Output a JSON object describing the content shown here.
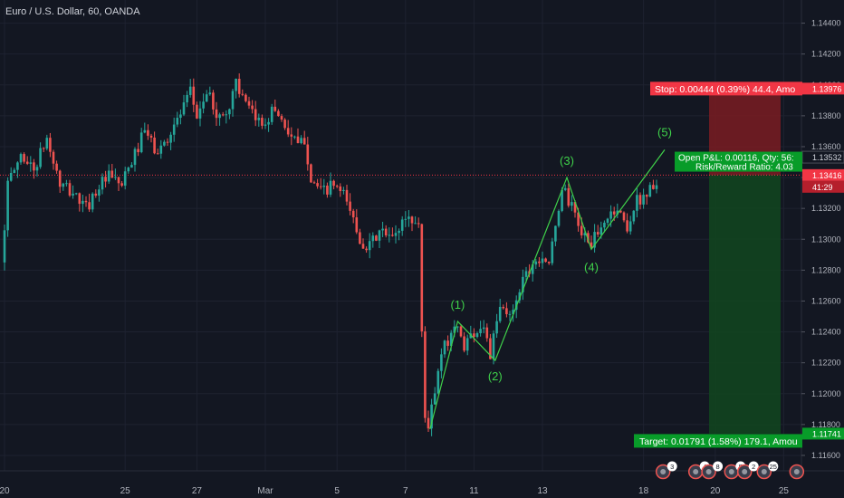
{
  "header": {
    "title": "Euro / U.S. Dollar, 60, OANDA"
  },
  "colors": {
    "background": "#131722",
    "grid": "#1e2230",
    "up": "#26a69a",
    "down": "#ef5350",
    "wave": "#3fd14a",
    "stop_zone": "#7a1c22",
    "target_zone": "#12461f",
    "price_line": "#f23645",
    "stop_label": "#f23645",
    "target_label": "#089c29",
    "axis_text": "#b2b5be"
  },
  "y_axis": {
    "min": 1.115,
    "max": 1.1455,
    "ticks": [
      "1.14400",
      "1.14200",
      "1.14000",
      "1.13800",
      "1.13600",
      "1.13400",
      "1.13200",
      "1.13000",
      "1.12800",
      "1.12600",
      "1.12400",
      "1.12200",
      "1.12000",
      "1.11800",
      "1.11600"
    ],
    "tick_values": [
      1.144,
      1.142,
      1.14,
      1.138,
      1.136,
      1.134,
      1.132,
      1.13,
      1.128,
      1.126,
      1.124,
      1.122,
      1.12,
      1.118,
      1.116
    ]
  },
  "x_axis": {
    "ticks": [
      {
        "label": "20",
        "bar": 0
      },
      {
        "label": "25",
        "bar": 37
      },
      {
        "label": "27",
        "bar": 59
      },
      {
        "label": "Mar",
        "bar": 80
      },
      {
        "label": "5",
        "bar": 102
      },
      {
        "label": "7",
        "bar": 123
      },
      {
        "label": "11",
        "bar": 144
      },
      {
        "label": "13",
        "bar": 165
      },
      {
        "label": "18",
        "bar": 196
      },
      {
        "label": "20",
        "bar": 218
      },
      {
        "label": "25",
        "bar": 239
      }
    ]
  },
  "position": {
    "entry": 1.13416,
    "stop": 1.13976,
    "target": 1.11741,
    "pnl_price": 1.13532,
    "stop_label": "Stop: 0.00444 (0.39%) 44.4, Amo",
    "target_label": "Target: 0.01791 (1.58%) 179.1, Amou",
    "pnl_line1": "Open P&L: 0.00116, Qty: 56:",
    "pnl_line2": "Risk/Reward Ratio: 4.03"
  },
  "price_tags": {
    "stop": "1.13976",
    "pnl": "1.13532",
    "current": "1.13416",
    "countdown": "41:29",
    "target": "1.11741"
  },
  "waves": [
    {
      "label": "(1)",
      "bar": 139.0,
      "price": 1.12468
    },
    {
      "label": "(2)",
      "bar": 150.5,
      "price": 1.12215
    },
    {
      "label": "(3)",
      "bar": 172.5,
      "price": 1.134
    },
    {
      "label": "(4)",
      "bar": 180.0,
      "price": 1.12935
    },
    {
      "label": "(5)",
      "bar": 202.5,
      "price": 1.1358
    }
  ],
  "wave_start": {
    "bar": 130.5,
    "price": 1.1177
  },
  "events": [
    {
      "label": "3",
      "bar": 202
    },
    {
      "label": "4",
      "bar": 212
    },
    {
      "label": "8",
      "bar": 216
    },
    {
      "label": "5",
      "bar": 223
    },
    {
      "label": "2",
      "bar": 227
    },
    {
      "label": "25",
      "bar": 233
    },
    {
      "label": "",
      "bar": 243
    }
  ],
  "chart_data": {
    "type": "candlestick",
    "anchors": [
      [
        0,
        1.1285
      ],
      [
        2,
        1.1335
      ],
      [
        6,
        1.1355
      ],
      [
        10,
        1.1345
      ],
      [
        14,
        1.1365
      ],
      [
        18,
        1.1335
      ],
      [
        22,
        1.133
      ],
      [
        26,
        1.132
      ],
      [
        30,
        1.1335
      ],
      [
        33,
        1.134
      ],
      [
        37,
        1.1335
      ],
      [
        40,
        1.135
      ],
      [
        44,
        1.137
      ],
      [
        48,
        1.1355
      ],
      [
        52,
        1.137
      ],
      [
        56,
        1.1385
      ],
      [
        58,
        1.1395
      ],
      [
        60,
        1.138
      ],
      [
        63,
        1.1395
      ],
      [
        67,
        1.1378
      ],
      [
        70,
        1.1385
      ],
      [
        72,
        1.1405
      ],
      [
        74,
        1.139
      ],
      [
        77,
        1.138
      ],
      [
        80,
        1.1375
      ],
      [
        84,
        1.1385
      ],
      [
        88,
        1.137
      ],
      [
        91,
        1.136
      ],
      [
        93,
        1.1365
      ],
      [
        95,
        1.134
      ],
      [
        98,
        1.133
      ],
      [
        102,
        1.1335
      ],
      [
        106,
        1.1325
      ],
      [
        110,
        1.13
      ],
      [
        113,
        1.1295
      ],
      [
        116,
        1.1305
      ],
      [
        120,
        1.13
      ],
      [
        124,
        1.1315
      ],
      [
        128,
        1.131
      ],
      [
        129,
        1.124
      ],
      [
        130,
        1.1185
      ],
      [
        131,
        1.118
      ],
      [
        133,
        1.12
      ],
      [
        135,
        1.1225
      ],
      [
        139,
        1.1245
      ],
      [
        142,
        1.1232
      ],
      [
        145,
        1.124
      ],
      [
        148,
        1.1245
      ],
      [
        150,
        1.1225
      ],
      [
        153,
        1.1255
      ],
      [
        156,
        1.125
      ],
      [
        160,
        1.1275
      ],
      [
        163,
        1.1285
      ],
      [
        166,
        1.129
      ],
      [
        168,
        1.1285
      ],
      [
        170,
        1.1305
      ],
      [
        172,
        1.1335
      ],
      [
        174,
        1.1325
      ],
      [
        176,
        1.1315
      ],
      [
        178,
        1.1305
      ],
      [
        180,
        1.1297
      ],
      [
        183,
        1.1302
      ],
      [
        186,
        1.1315
      ],
      [
        189,
        1.132
      ],
      [
        192,
        1.1308
      ],
      [
        195,
        1.1325
      ],
      [
        198,
        1.133
      ],
      [
        200,
        1.1335
      ]
    ],
    "bar_count": 201,
    "seed": 1337
  }
}
